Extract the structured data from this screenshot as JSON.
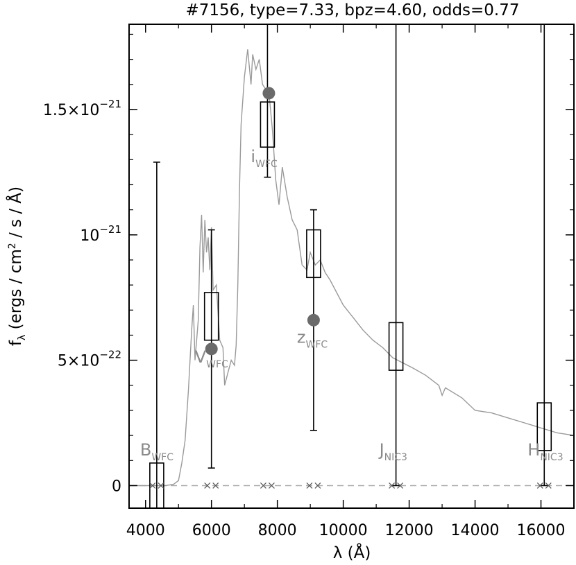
{
  "chart_data": {
    "type": "scatter",
    "title": "#7156, type=7.33, bpz=4.60, odds=0.77",
    "xlabel": "λ (Å)",
    "ylabel": "f_λ (ergs / cm² / s / Å)",
    "xlim": [
      3500,
      17000
    ],
    "ylim": [
      -9e-23,
      1.84e-21
    ],
    "x_ticks": [
      4000,
      6000,
      8000,
      10000,
      12000,
      14000,
      16000
    ],
    "y_ticks": [
      {
        "value": 0,
        "label": "0"
      },
      {
        "value": 5e-22,
        "label": "5×10",
        "exp": "−22"
      },
      {
        "value": 1e-21,
        "label": "10",
        "exp": "−21"
      },
      {
        "value": 1.5e-21,
        "label": "1.5×10",
        "exp": "−21"
      }
    ],
    "zero_line": true,
    "colors": {
      "spectrum": "#9a9a9a",
      "model_points": "#6a6a6a",
      "band_labels": "#8a8a8a",
      "zero_line": "#aaaaaa"
    },
    "spectrum": [
      [
        3500,
        0
      ],
      [
        4600,
        0
      ],
      [
        4850,
        5e-24
      ],
      [
        5000,
        2e-23
      ],
      [
        5100,
        9e-23
      ],
      [
        5200,
        1.8e-22
      ],
      [
        5300,
        3.8e-22
      ],
      [
        5400,
        6.2e-22
      ],
      [
        5450,
        7.2e-22
      ],
      [
        5500,
        5e-22
      ],
      [
        5600,
        6.6e-22
      ],
      [
        5650,
        9.5e-22
      ],
      [
        5700,
        1.08e-21
      ],
      [
        5750,
        8.5e-22
      ],
      [
        5800,
        1.06e-21
      ],
      [
        5850,
        9.3e-22
      ],
      [
        5900,
        9.9e-22
      ],
      [
        5950,
        8.6e-22
      ],
      [
        6000,
        1.03e-21
      ],
      [
        6050,
        7.8e-22
      ],
      [
        6150,
        8e-22
      ],
      [
        6250,
        5.8e-22
      ],
      [
        6350,
        5.5e-22
      ],
      [
        6400,
        4e-22
      ],
      [
        6500,
        4.5e-22
      ],
      [
        6600,
        5e-22
      ],
      [
        6700,
        4.8e-22
      ],
      [
        6750,
        5.6e-22
      ],
      [
        6800,
        8e-22
      ],
      [
        6850,
        1.18e-21
      ],
      [
        6900,
        1.44e-21
      ],
      [
        7000,
        1.63e-21
      ],
      [
        7100,
        1.74e-21
      ],
      [
        7200,
        1.6e-21
      ],
      [
        7250,
        1.72e-21
      ],
      [
        7350,
        1.66e-21
      ],
      [
        7450,
        1.7e-21
      ],
      [
        7550,
        1.6e-21
      ],
      [
        7650,
        1.58e-21
      ],
      [
        7750,
        1.56e-21
      ],
      [
        7850,
        1.42e-21
      ],
      [
        7950,
        1.22e-21
      ],
      [
        8050,
        1.12e-21
      ],
      [
        8150,
        1.27e-21
      ],
      [
        8300,
        1.15e-21
      ],
      [
        8450,
        1.06e-21
      ],
      [
        8600,
        1.02e-21
      ],
      [
        8750,
        8.8e-22
      ],
      [
        8900,
        8.6e-22
      ],
      [
        9000,
        9.3e-22
      ],
      [
        9150,
        8.8e-22
      ],
      [
        9300,
        9e-22
      ],
      [
        9450,
        8.5e-22
      ],
      [
        9600,
        8.2e-22
      ],
      [
        9800,
        7.7e-22
      ],
      [
        10000,
        7.2e-22
      ],
      [
        10300,
        6.7e-22
      ],
      [
        10600,
        6.2e-22
      ],
      [
        10900,
        5.8e-22
      ],
      [
        11200,
        5.5e-22
      ],
      [
        11500,
        5.1e-22
      ],
      [
        11800,
        4.9e-22
      ],
      [
        12100,
        4.7e-22
      ],
      [
        12500,
        4.4e-22
      ],
      [
        12900,
        4e-22
      ],
      [
        13000,
        3.6e-22
      ],
      [
        13100,
        3.9e-22
      ],
      [
        13600,
        3.5e-22
      ],
      [
        14000,
        3e-22
      ],
      [
        14500,
        2.9e-22
      ],
      [
        15000,
        2.7e-22
      ],
      [
        15500,
        2.5e-22
      ],
      [
        16000,
        2.3e-22
      ],
      [
        16500,
        2.1e-22
      ],
      [
        17000,
        2e-22
      ]
    ],
    "bands": [
      {
        "name": "B",
        "sub": "WFC",
        "x": 4340,
        "obs": 0.0,
        "obs_lo": -9e-23,
        "obs_hi": 9e-23,
        "err_lo": -9e-23,
        "err_hi": 1.29e-21,
        "model": null,
        "label_value": 1.2e-22
      },
      {
        "name": "V",
        "sub": "WFC",
        "x": 6000,
        "obs": 6.8e-22,
        "obs_lo": 5.8e-22,
        "obs_hi": 7.7e-22,
        "err_lo": 7e-23,
        "err_hi": 1.02e-21,
        "model": 5.45e-22,
        "label_value": 4.9e-22
      },
      {
        "name": "i",
        "sub": "WFC",
        "x": 7700,
        "obs": 1.44e-21,
        "obs_lo": 1.35e-21,
        "obs_hi": 1.53e-21,
        "err_lo": 1.23e-21,
        "err_hi": 1.84e-21,
        "model": 1.565e-21,
        "label_value": 1.29e-21
      },
      {
        "name": "z",
        "sub": "WFC",
        "x": 9100,
        "obs": 9.3e-22,
        "obs_lo": 8.3e-22,
        "obs_hi": 1.02e-21,
        "err_lo": 2.2e-22,
        "err_hi": 1.1e-21,
        "model": 6.6e-22,
        "label_value": 5.7e-22
      },
      {
        "name": "J",
        "sub": "NIC3",
        "x": 11600,
        "obs": 5.6e-22,
        "obs_lo": 4.6e-22,
        "obs_hi": 6.5e-22,
        "err_lo": 0.0,
        "err_hi": 1.84e-21,
        "model": null,
        "label_value": 1.2e-22
      },
      {
        "name": "H",
        "sub": "NIC3",
        "x": 16100,
        "obs": 2.3e-22,
        "obs_lo": 1.4e-22,
        "obs_hi": 3.3e-22,
        "err_lo": 0.0,
        "err_hi": 1.84e-21,
        "model": null,
        "label_value": 1.2e-22
      }
    ]
  }
}
